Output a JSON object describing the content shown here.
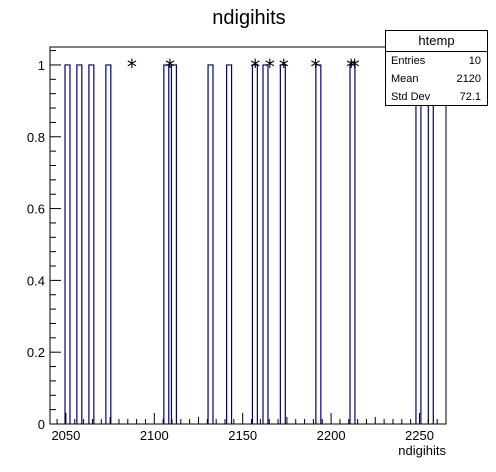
{
  "chart_data": {
    "type": "bar",
    "title": "ndigihits",
    "xlabel": "ndigihits",
    "ylabel": "",
    "xlim": [
      2041,
      2265
    ],
    "ylim": [
      0,
      1.05
    ],
    "x_ticks": [
      "2050",
      "2100",
      "2150",
      "2200",
      "2250"
    ],
    "y_ticks": [
      "0",
      "0.2",
      "0.4",
      "0.6",
      "0.8",
      "1"
    ],
    "grid": false,
    "bar_width": 2.8,
    "series": [
      {
        "style": "step",
        "color": "#000080",
        "bins": [
          2049.5,
          2056.2,
          2063.0,
          2072.6,
          2105.4,
          2109.7,
          2130.4,
          2140.9,
          2155.5,
          2161.5,
          2171.3,
          2191.4,
          2210.7,
          2248.0,
          2255.0
        ],
        "values": [
          1,
          1,
          1,
          1,
          1,
          1,
          1,
          1,
          1,
          1,
          1,
          1,
          1,
          1,
          1
        ]
      },
      {
        "style": "marker",
        "marker": "*",
        "x": [
          2087.3,
          2108.9,
          2157.1,
          2165.4,
          2173.2,
          2191.2,
          2211.3,
          2213.3
        ],
        "values": [
          1,
          1,
          1,
          1,
          1,
          1,
          1,
          1
        ]
      }
    ],
    "stats": {
      "name": "htemp",
      "rows": [
        {
          "label": "Entries",
          "value": "10"
        },
        {
          "label": "Mean",
          "value": "2120"
        },
        {
          "label": "Std Dev",
          "value": "72.1"
        }
      ]
    }
  }
}
